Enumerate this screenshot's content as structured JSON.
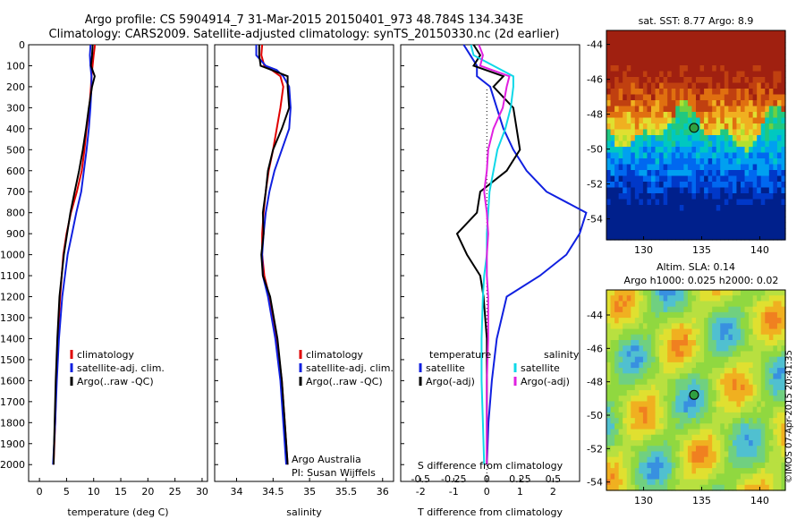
{
  "header": {
    "line1": "Argo profile: CS 5904914_7 31-Mar-2015 20150401_973 48.784S 134.343E",
    "line2": "Climatology: CARS2009. Satellite-adjusted climatology: synTS_20150330.nc (2d earlier)"
  },
  "colors": {
    "climatology": "#e00000",
    "satellite": "#1020e0",
    "argo": "#000000",
    "sat_salinity": "#10d8e8",
    "argo_salinity_adj": "#e020e0"
  },
  "chart_data": [
    {
      "type": "line",
      "panel": "temperature",
      "xlabel": "temperature (deg C)",
      "ylabel": "",
      "xlim": [
        -2,
        31
      ],
      "ylim": [
        2080,
        0
      ],
      "xticks": [
        "0",
        "5",
        "10",
        "15",
        "20",
        "25",
        "30"
      ],
      "yticks": [
        "0",
        "100",
        "200",
        "300",
        "400",
        "500",
        "600",
        "700",
        "800",
        "900",
        "1000",
        "1100",
        "1200",
        "1300",
        "1400",
        "1500",
        "1600",
        "1700",
        "1800",
        "1900",
        "2000"
      ],
      "legend": [
        "climatology",
        "satellite-adj. clim.",
        "Argo(..raw -QC)"
      ],
      "depth": [
        0,
        10,
        50,
        100,
        150,
        200,
        300,
        400,
        500,
        600,
        700,
        800,
        900,
        1000,
        1200,
        1400,
        1600,
        1800,
        2000
      ],
      "series": [
        {
          "name": "climatology",
          "values": [
            10.2,
            10.2,
            10.0,
            9.8,
            9.6,
            9.5,
            9.2,
            8.7,
            8.3,
            7.8,
            6.9,
            5.8,
            5.0,
            4.4,
            3.8,
            3.4,
            3.1,
            2.9,
            2.6
          ]
        },
        {
          "name": "satellite-adj. clim.",
          "values": [
            9.4,
            9.4,
            9.3,
            9.4,
            9.6,
            9.6,
            9.4,
            9.1,
            8.7,
            8.2,
            7.7,
            6.8,
            6.0,
            5.2,
            4.2,
            3.6,
            3.2,
            2.9,
            2.5
          ]
        },
        {
          "name": "Argo(..raw -QC)",
          "values": [
            9.8,
            9.8,
            9.7,
            9.5,
            10.2,
            9.7,
            9.1,
            8.6,
            8.0,
            7.3,
            6.5,
            5.7,
            5.1,
            4.5,
            3.7,
            3.3,
            3.0,
            2.8,
            2.6
          ]
        }
      ]
    },
    {
      "type": "line",
      "panel": "salinity",
      "xlabel": "salinity",
      "xlim": [
        33.7,
        36.15
      ],
      "ylim": [
        2080,
        0
      ],
      "xticks": [
        "34",
        "34.5",
        "35",
        "35.5",
        "36"
      ],
      "legend": [
        "climatology",
        "satellite-adj. clim.",
        "Argo(..raw -QC)"
      ],
      "annotation": [
        "Argo Australia",
        "PI: Susan Wijffels"
      ],
      "depth": [
        0,
        50,
        100,
        120,
        150,
        200,
        300,
        400,
        500,
        600,
        700,
        800,
        900,
        1000,
        1100,
        1200,
        1400,
        1600,
        1800,
        2000
      ],
      "series": [
        {
          "name": "climatology",
          "values": [
            34.35,
            34.34,
            34.38,
            34.48,
            34.6,
            34.64,
            34.6,
            34.55,
            34.5,
            34.44,
            34.4,
            34.37,
            34.35,
            34.35,
            34.38,
            34.45,
            34.55,
            34.62,
            34.66,
            34.7
          ]
        },
        {
          "name": "satellite-adj. clim.",
          "values": [
            34.27,
            34.27,
            34.4,
            34.55,
            34.64,
            34.72,
            34.74,
            34.72,
            34.62,
            34.52,
            34.45,
            34.4,
            34.37,
            34.35,
            34.36,
            34.43,
            34.53,
            34.6,
            34.64,
            34.68
          ]
        },
        {
          "name": "Argo(..raw -QC)",
          "values": [
            34.31,
            34.31,
            34.33,
            34.48,
            34.7,
            34.7,
            34.72,
            34.62,
            34.5,
            34.43,
            34.4,
            34.36,
            34.37,
            34.34,
            34.36,
            34.46,
            34.56,
            34.62,
            34.66,
            34.7
          ]
        }
      ]
    },
    {
      "type": "line",
      "panel": "difference",
      "xlabel": "T difference from climatology",
      "xlabel_top": "S difference from climatology",
      "xlim": [
        -2.6,
        2.8
      ],
      "ylim": [
        2080,
        0
      ],
      "xticks": [
        "-2",
        "-1",
        "0",
        "1",
        "2"
      ],
      "xticks_top": [
        "-0.5",
        "-0.25",
        "0",
        "0.25",
        "0.5"
      ],
      "legend_groups": [
        {
          "title": "temperature",
          "items": [
            "satellite",
            "Argo(-adj)"
          ]
        },
        {
          "title": "salinity",
          "items": [
            "satellite",
            "Argo(-adj)"
          ]
        }
      ],
      "depth": [
        0,
        50,
        100,
        150,
        200,
        300,
        400,
        500,
        600,
        700,
        800,
        900,
        1000,
        1100,
        1200,
        1400,
        1600,
        1800,
        2000
      ],
      "series": [
        {
          "name": "satellite (temperature)",
          "values": [
            -0.7,
            -0.5,
            -0.3,
            -0.3,
            0.1,
            0.3,
            0.5,
            0.8,
            1.2,
            1.8,
            3.0,
            2.8,
            2.4,
            1.6,
            0.6,
            0.3,
            0.15,
            0.05,
            0.0
          ]
        },
        {
          "name": "Argo(-adj) (temperature)",
          "values": [
            -0.4,
            -0.2,
            -0.4,
            0.5,
            0.2,
            0.8,
            0.9,
            1.0,
            0.6,
            -0.2,
            -0.3,
            -0.9,
            -0.6,
            -0.2,
            -0.1,
            0.0,
            0.0,
            0.0,
            0.0
          ]
        },
        {
          "name": "satellite (salinity)",
          "values": [
            -0.12,
            -0.1,
            0.05,
            0.2,
            0.2,
            0.18,
            0.14,
            0.08,
            0.05,
            0.02,
            0.01,
            0.0,
            0.0,
            -0.02,
            -0.03,
            -0.04,
            -0.04,
            -0.03,
            -0.02
          ]
        },
        {
          "name": "Argo(-adj) (salinity)",
          "values": [
            -0.06,
            -0.03,
            -0.05,
            0.17,
            0.15,
            0.12,
            0.05,
            0.01,
            0.0,
            -0.02,
            0.0,
            0.01,
            0.0,
            0.0,
            0.01,
            0.01,
            0.0,
            0.0,
            0.0
          ]
        }
      ]
    },
    {
      "type": "heatmap",
      "panel": "sst_map",
      "title": "sat. SST: 8.77 Argo: 8.9",
      "xlim": [
        126.8,
        142.2
      ],
      "ylim": [
        -55.2,
        -43.2
      ],
      "xticks": [
        "130",
        "135",
        "140"
      ],
      "yticks": [
        "-44",
        "-46",
        "-48",
        "-50",
        "-52",
        "-54"
      ],
      "marker": {
        "lon": 134.343,
        "lat": -48.784
      }
    },
    {
      "type": "heatmap",
      "panel": "sla_map",
      "title": "Altim. SLA: 0.14",
      "subtitle": "Argo h1000: 0.025 h2000: 0.02",
      "xlim": [
        126.8,
        142.2
      ],
      "ylim": [
        -54.5,
        -42.5
      ],
      "xticks": [
        "130",
        "135",
        "140"
      ],
      "yticks": [
        "-44",
        "-46",
        "-48",
        "-50",
        "-52",
        "-54"
      ],
      "marker": {
        "lon": 134.343,
        "lat": -48.784
      }
    }
  ],
  "stamp": "©IMOS 07-Apr-2015 20:41:35"
}
